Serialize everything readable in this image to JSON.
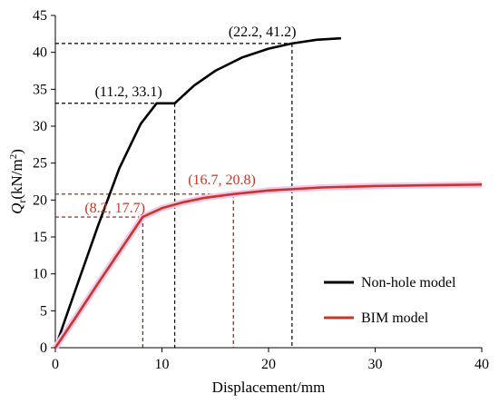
{
  "chart_data": {
    "type": "line",
    "xlabel": "Displacement/mm",
    "ylabel_main": "Q",
    "ylabel_sub": "r",
    "ylabel_unit": "(kN/m",
    "ylabel_sup": "2",
    "ylabel_close": ")",
    "xlim": [
      0,
      40
    ],
    "ylim": [
      0,
      45
    ],
    "xticks": [
      0,
      10,
      20,
      30,
      40
    ],
    "yticks": [
      0,
      5,
      10,
      15,
      20,
      25,
      30,
      35,
      40,
      45
    ],
    "grid": false,
    "legend_position": "bottom-right",
    "series": [
      {
        "name": "Non-hole model",
        "color": "#000000",
        "x": [
          0,
          2,
          4,
          6,
          8,
          9.5,
          11.2,
          13,
          15,
          17.5,
          20,
          22.2,
          24.5,
          26.8
        ],
        "y": [
          0,
          8.3,
          16.5,
          24.3,
          30.3,
          33.1,
          33.1,
          35.5,
          37.5,
          39.3,
          40.5,
          41.2,
          41.7,
          41.9
        ]
      },
      {
        "name": "BIM model",
        "color": "#c0392b",
        "x": [
          0,
          2,
          4,
          6,
          8.2,
          10,
          12,
          14,
          16.7,
          20,
          25,
          30,
          35,
          40
        ],
        "y": [
          0,
          4.3,
          8.7,
          13.0,
          17.7,
          18.9,
          19.7,
          20.3,
          20.8,
          21.3,
          21.7,
          21.9,
          22.0,
          22.1
        ]
      }
    ],
    "annotations": [
      {
        "text": "(11.2, 33.1)",
        "x": 11.2,
        "y": 33.1,
        "color": "#000000"
      },
      {
        "text": "(22.2, 41.2)",
        "x": 22.2,
        "y": 41.2,
        "color": "#000000"
      },
      {
        "text": "(8.2, 17.7)",
        "x": 8.2,
        "y": 17.7,
        "color": "#c0392b"
      },
      {
        "text": "(16.7, 20.8)",
        "x": 16.7,
        "y": 20.8,
        "color": "#c0392b"
      }
    ]
  }
}
